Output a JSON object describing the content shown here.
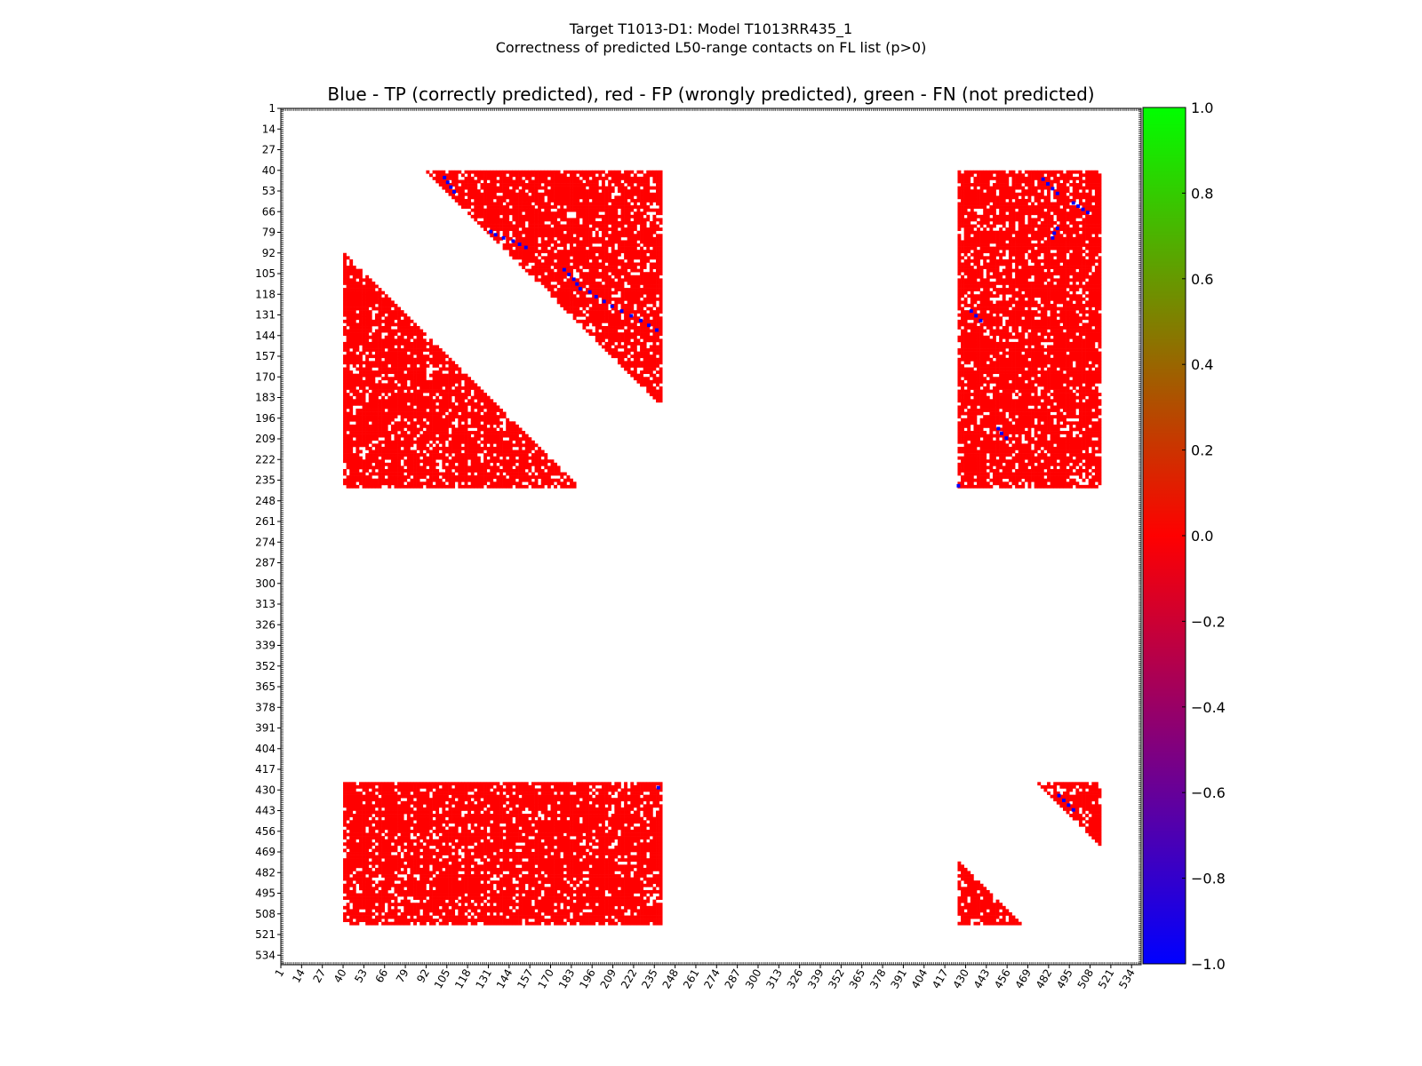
{
  "chart_data": {
    "type": "heatmap",
    "suptitle": [
      "Target T1013-D1: Model T1013RR435_1",
      "Correctness of predicted L50-range contacts on FL list (p>0)"
    ],
    "title": "Blue - TP (correctly predicted), red - FP (wrongly predicted), green - FN (not predicted)",
    "xlabel": "",
    "ylabel": "",
    "axis_range": [
      1,
      540
    ],
    "x_ticks": [
      1,
      14,
      27,
      40,
      53,
      66,
      79,
      92,
      105,
      118,
      131,
      144,
      157,
      170,
      183,
      196,
      209,
      222,
      235,
      248,
      261,
      274,
      287,
      300,
      313,
      326,
      339,
      352,
      365,
      378,
      391,
      404,
      417,
      430,
      443,
      456,
      469,
      482,
      495,
      508,
      521,
      534
    ],
    "y_ticks": [
      1,
      14,
      27,
      40,
      53,
      66,
      79,
      92,
      105,
      118,
      131,
      144,
      157,
      170,
      183,
      196,
      209,
      222,
      235,
      248,
      261,
      274,
      287,
      300,
      313,
      326,
      339,
      352,
      365,
      378,
      391,
      404,
      417,
      430,
      443,
      456,
      469,
      482,
      495,
      508,
      521,
      534
    ],
    "colorbar": {
      "min": -1.0,
      "max": 1.0,
      "ticks": [
        "1.0",
        "0.8",
        "0.6",
        "0.4",
        "0.2",
        "0.0",
        "−0.2",
        "−0.4",
        "−0.6",
        "−0.8",
        "−1.0"
      ],
      "colors": [
        "#0000ff",
        "#ff0000",
        "#00ff00"
      ]
    },
    "legend": {
      "TP": {
        "value": -1.0,
        "color": "#0000ff"
      },
      "FP": {
        "value": 0.0,
        "color": "#ff0000"
      },
      "FN": {
        "value": 1.0,
        "color": "#00ff00"
      }
    },
    "fp_regions": [
      {
        "shape": "upper-triangle",
        "rows": [
          40,
          190
        ],
        "cols": [
          92,
          240
        ]
      },
      {
        "shape": "lower-triangle",
        "rows": [
          92,
          240
        ],
        "cols": [
          40,
          190
        ]
      },
      {
        "shape": "block",
        "rows": [
          40,
          240
        ],
        "cols": [
          425,
          515
        ]
      },
      {
        "shape": "block",
        "rows": [
          425,
          515
        ],
        "cols": [
          40,
          240
        ]
      },
      {
        "shape": "upper-triangle",
        "rows": [
          425,
          465
        ],
        "cols": [
          475,
          515
        ]
      },
      {
        "shape": "lower-triangle",
        "rows": [
          475,
          515
        ],
        "cols": [
          425,
          465
        ]
      }
    ],
    "tp_points": [
      [
        44,
        103
      ],
      [
        47,
        105
      ],
      [
        50,
        107
      ],
      [
        53,
        109
      ],
      [
        78,
        132
      ],
      [
        80,
        135
      ],
      [
        82,
        140
      ],
      [
        84,
        146
      ],
      [
        86,
        150
      ],
      [
        88,
        154
      ],
      [
        102,
        178
      ],
      [
        105,
        181
      ],
      [
        108,
        184
      ],
      [
        111,
        186
      ],
      [
        114,
        188
      ],
      [
        116,
        194
      ],
      [
        119,
        198
      ],
      [
        122,
        203
      ],
      [
        125,
        208
      ],
      [
        128,
        214
      ],
      [
        131,
        220
      ],
      [
        134,
        226
      ],
      [
        137,
        231
      ],
      [
        140,
        236
      ],
      [
        45,
        478
      ],
      [
        48,
        481
      ],
      [
        51,
        484
      ],
      [
        54,
        487
      ],
      [
        60,
        497
      ],
      [
        62,
        500
      ],
      [
        64,
        503
      ],
      [
        66,
        506
      ],
      [
        76,
        487
      ],
      [
        79,
        485
      ],
      [
        82,
        484
      ],
      [
        128,
        433
      ],
      [
        131,
        436
      ],
      [
        134,
        439
      ],
      [
        202,
        450
      ],
      [
        205,
        452
      ],
      [
        208,
        455
      ],
      [
        238,
        425
      ],
      [
        433,
        488
      ],
      [
        436,
        491
      ],
      [
        439,
        494
      ],
      [
        442,
        497
      ],
      [
        428,
        237
      ]
    ]
  }
}
